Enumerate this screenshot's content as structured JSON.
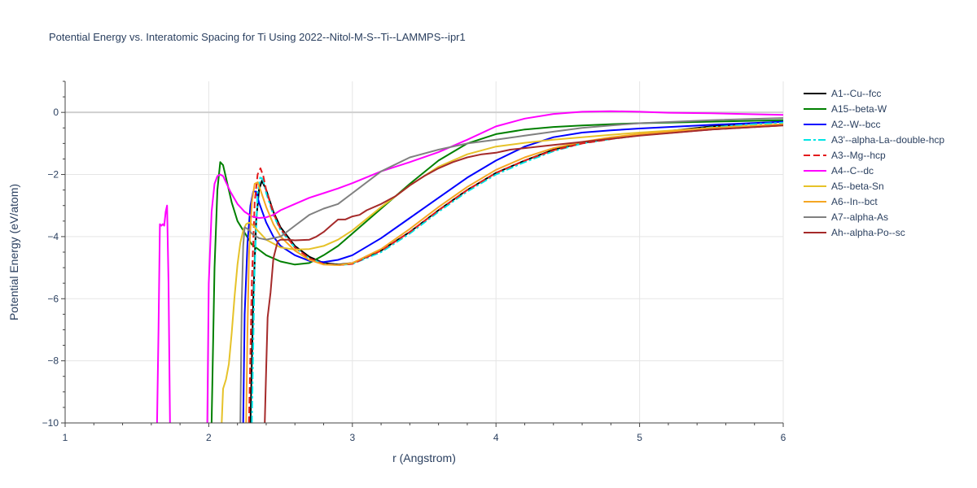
{
  "chart_data": {
    "type": "line",
    "title": "Potential Energy vs. Interatomic Spacing for Ti Using 2022--Nitol-M-S--Ti--LAMMPS--ipr1",
    "xlabel": "r (Angstrom)",
    "ylabel": "Potential Energy (eV/atom)",
    "xlim": [
      1,
      6
    ],
    "ylim": [
      -10,
      1
    ],
    "xticks": [
      1,
      2,
      3,
      4,
      5,
      6
    ],
    "yticks": [
      -10,
      -8,
      -6,
      -4,
      -2,
      0
    ],
    "xtick_labels": [
      "1",
      "2",
      "3",
      "4",
      "5",
      "6"
    ],
    "ytick_labels": [
      "−10",
      "−8",
      "−6",
      "−4",
      "−2",
      "0"
    ],
    "grid": true,
    "legend_position": "right",
    "series": [
      {
        "name": "A1--Cu--fcc",
        "color": "#000000",
        "dash": "solid",
        "x": [
          2.29,
          2.31,
          2.33,
          2.35,
          2.37,
          2.4,
          2.45,
          2.5,
          2.6,
          2.7,
          2.8,
          2.9,
          3.0,
          3.2,
          3.4,
          3.6,
          3.8,
          4.0,
          4.2,
          4.4,
          4.6,
          4.8,
          5.0,
          5.2,
          5.5,
          5.8,
          6.0
        ],
        "y": [
          -10,
          -6.0,
          -3.5,
          -2.5,
          -2.2,
          -2.5,
          -3.2,
          -3.7,
          -4.3,
          -4.65,
          -4.85,
          -4.9,
          -4.85,
          -4.45,
          -3.85,
          -3.15,
          -2.5,
          -1.95,
          -1.55,
          -1.2,
          -0.98,
          -0.85,
          -0.73,
          -0.6,
          -0.45,
          -0.35,
          -0.3
        ]
      },
      {
        "name": "A15--beta-W",
        "color": "#008000",
        "dash": "solid",
        "x": [
          2.02,
          2.04,
          2.06,
          2.08,
          2.1,
          2.13,
          2.16,
          2.2,
          2.3,
          2.4,
          2.5,
          2.6,
          2.7,
          2.8,
          2.9,
          3.0,
          3.2,
          3.4,
          3.6,
          3.8,
          4.0,
          4.2,
          4.4,
          4.6,
          4.8,
          5.0,
          5.5,
          6.0
        ],
        "y": [
          -10,
          -5.0,
          -2.5,
          -1.6,
          -1.7,
          -2.3,
          -2.9,
          -3.5,
          -4.25,
          -4.6,
          -4.8,
          -4.9,
          -4.85,
          -4.6,
          -4.3,
          -3.9,
          -3.1,
          -2.3,
          -1.55,
          -1.0,
          -0.7,
          -0.55,
          -0.47,
          -0.42,
          -0.38,
          -0.35,
          -0.3,
          -0.25
        ]
      },
      {
        "name": "A2--W--bcc",
        "color": "#0000ff",
        "dash": "solid",
        "x": [
          2.24,
          2.25,
          2.27,
          2.29,
          2.31,
          2.33,
          2.35,
          2.4,
          2.45,
          2.5,
          2.6,
          2.7,
          2.8,
          2.9,
          3.0,
          3.2,
          3.4,
          3.6,
          3.8,
          4.0,
          4.2,
          4.4,
          4.6,
          4.8,
          5.0,
          5.5,
          6.0
        ],
        "y": [
          -10,
          -6.5,
          -4.2,
          -3.0,
          -2.55,
          -2.55,
          -2.9,
          -3.55,
          -4.0,
          -4.3,
          -4.6,
          -4.78,
          -4.82,
          -4.75,
          -4.6,
          -4.05,
          -3.4,
          -2.75,
          -2.1,
          -1.55,
          -1.1,
          -0.8,
          -0.65,
          -0.58,
          -0.52,
          -0.4,
          -0.3
        ]
      },
      {
        "name": "A3'--alpha-La--double-hcp",
        "color": "#00e5e5",
        "dash": "dashdot",
        "x": [
          2.3,
          2.32,
          2.34,
          2.36,
          2.38,
          2.4,
          2.45,
          2.5,
          2.6,
          2.7,
          2.8,
          2.9,
          3.0,
          3.2,
          3.4,
          3.6,
          3.8,
          4.0,
          4.2,
          4.4,
          4.6,
          4.8,
          5.0,
          5.2,
          5.5,
          5.8,
          6.0
        ],
        "y": [
          -10,
          -5.0,
          -2.6,
          -2.05,
          -2.2,
          -2.6,
          -3.3,
          -3.8,
          -4.35,
          -4.7,
          -4.88,
          -4.92,
          -4.88,
          -4.5,
          -3.9,
          -3.2,
          -2.55,
          -2.0,
          -1.6,
          -1.25,
          -1.0,
          -0.86,
          -0.74,
          -0.62,
          -0.48,
          -0.38,
          -0.33
        ]
      },
      {
        "name": "A3--Mg--hcp",
        "color": "#e31a1c",
        "dash": "dash",
        "x": [
          2.28,
          2.3,
          2.32,
          2.34,
          2.36,
          2.38,
          2.4,
          2.45,
          2.5,
          2.6,
          2.7,
          2.8,
          2.9,
          3.0,
          3.2,
          3.4,
          3.6,
          3.8,
          4.0,
          4.2,
          4.4,
          4.6,
          4.8,
          5.0,
          5.5,
          6.0
        ],
        "y": [
          -10,
          -5.5,
          -2.9,
          -2.0,
          -1.8,
          -2.05,
          -2.5,
          -3.25,
          -3.75,
          -4.35,
          -4.7,
          -4.88,
          -4.92,
          -4.88,
          -4.45,
          -3.85,
          -3.15,
          -2.5,
          -1.95,
          -1.55,
          -1.22,
          -1.0,
          -0.86,
          -0.74,
          -0.55,
          -0.42
        ]
      },
      {
        "name": "A4--C--dc",
        "color": "#ff00ff",
        "dash": "solid",
        "x": [
          1.64,
          1.65,
          1.66,
          1.67,
          1.68,
          1.69,
          1.7,
          1.71,
          1.72,
          1.73,
          null,
          1.99,
          2.0,
          2.02,
          2.04,
          2.06,
          2.08,
          2.1,
          2.15,
          2.2,
          2.25,
          2.3,
          2.35,
          2.4,
          2.45,
          2.5,
          2.6,
          2.7,
          2.8,
          2.9,
          3.0,
          3.2,
          3.4,
          3.6,
          3.8,
          4.0,
          4.2,
          4.4,
          4.6,
          4.8,
          5.0,
          5.2,
          5.5,
          5.8,
          6.0
        ],
        "y": [
          -10,
          -7.0,
          -3.6,
          -3.65,
          -3.6,
          -3.65,
          -3.2,
          -3.0,
          -5.5,
          -10,
          null,
          -10,
          -5.5,
          -3.2,
          -2.3,
          -2.05,
          -2.0,
          -2.05,
          -2.55,
          -2.95,
          -3.2,
          -3.35,
          -3.4,
          -3.38,
          -3.3,
          -3.15,
          -2.95,
          -2.75,
          -2.6,
          -2.45,
          -2.28,
          -1.9,
          -1.6,
          -1.28,
          -0.88,
          -0.45,
          -0.2,
          -0.05,
          0.02,
          0.04,
          0.02,
          -0.01,
          -0.03,
          -0.06,
          -0.08
        ]
      },
      {
        "name": "A5--beta-Sn",
        "color": "#e6c229",
        "dash": "solid",
        "x": [
          2.09,
          2.1,
          2.12,
          2.14,
          2.16,
          2.18,
          2.2,
          2.22,
          2.24,
          2.26,
          2.28,
          2.3,
          2.35,
          2.4,
          2.5,
          2.6,
          2.7,
          2.8,
          2.9,
          3.0,
          3.2,
          3.4,
          3.6,
          3.8,
          4.0,
          4.2,
          4.4,
          4.6,
          4.8,
          5.0,
          5.5,
          6.0
        ],
        "y": [
          -10,
          -8.9,
          -8.6,
          -8.1,
          -7.1,
          -5.9,
          -4.9,
          -4.2,
          -3.8,
          -3.6,
          -3.55,
          -3.6,
          -3.85,
          -4.1,
          -4.35,
          -4.42,
          -4.4,
          -4.3,
          -4.1,
          -3.8,
          -3.05,
          -2.35,
          -1.75,
          -1.35,
          -1.1,
          -0.98,
          -0.88,
          -0.8,
          -0.72,
          -0.65,
          -0.5,
          -0.38
        ]
      },
      {
        "name": "A6--In--bct",
        "color": "#f5a623",
        "dash": "solid",
        "x": [
          2.26,
          2.27,
          2.28,
          2.3,
          2.32,
          2.34,
          2.36,
          2.4,
          2.45,
          2.5,
          2.6,
          2.7,
          2.8,
          2.9,
          3.0,
          3.2,
          3.4,
          3.6,
          3.8,
          4.0,
          4.2,
          4.4,
          4.6,
          4.8,
          5.0,
          5.5,
          6.0
        ],
        "y": [
          -10,
          -7.0,
          -4.6,
          -2.9,
          -2.3,
          -2.25,
          -2.5,
          -3.05,
          -3.6,
          -4.0,
          -4.45,
          -4.75,
          -4.9,
          -4.92,
          -4.85,
          -4.4,
          -3.75,
          -3.05,
          -2.4,
          -1.85,
          -1.45,
          -1.15,
          -0.95,
          -0.8,
          -0.7,
          -0.5,
          -0.38
        ]
      },
      {
        "name": "A7--alpha-As",
        "color": "#808080",
        "dash": "solid",
        "x": [
          2.22,
          2.23,
          2.24,
          2.25,
          2.27,
          2.3,
          2.35,
          2.4,
          2.5,
          2.6,
          2.7,
          2.8,
          2.9,
          3.0,
          3.2,
          3.4,
          3.6,
          3.8,
          4.0,
          4.2,
          4.4,
          4.6,
          4.8,
          5.0,
          5.5,
          6.0
        ],
        "y": [
          -10,
          -6.0,
          -4.3,
          -3.7,
          -3.75,
          -3.9,
          -4.05,
          -4.1,
          -4.0,
          -3.65,
          -3.3,
          -3.1,
          -2.95,
          -2.6,
          -1.9,
          -1.45,
          -1.2,
          -1.0,
          -0.88,
          -0.75,
          -0.62,
          -0.5,
          -0.42,
          -0.35,
          -0.25,
          -0.18
        ]
      },
      {
        "name": "Ah--alpha-Po--sc",
        "color": "#a52a2a",
        "dash": "solid",
        "x": [
          2.39,
          2.4,
          2.41,
          2.43,
          2.45,
          2.48,
          2.5,
          2.55,
          2.6,
          2.7,
          2.75,
          2.8,
          2.85,
          2.9,
          2.95,
          3.0,
          3.05,
          3.1,
          3.2,
          3.3,
          3.4,
          3.5,
          3.6,
          3.7,
          3.8,
          3.9,
          4.0,
          4.05,
          4.1,
          4.2,
          4.4,
          4.6,
          4.8,
          5.0,
          5.5,
          6.0
        ],
        "y": [
          -10,
          -8.2,
          -6.6,
          -5.8,
          -4.7,
          -4.15,
          -4.1,
          -4.1,
          -4.12,
          -4.1,
          -4.0,
          -3.85,
          -3.65,
          -3.45,
          -3.45,
          -3.35,
          -3.3,
          -3.15,
          -2.95,
          -2.7,
          -2.35,
          -2.05,
          -1.8,
          -1.6,
          -1.45,
          -1.35,
          -1.3,
          -1.25,
          -1.2,
          -1.15,
          -1.05,
          -0.95,
          -0.85,
          -0.75,
          -0.55,
          -0.42
        ]
      }
    ]
  }
}
